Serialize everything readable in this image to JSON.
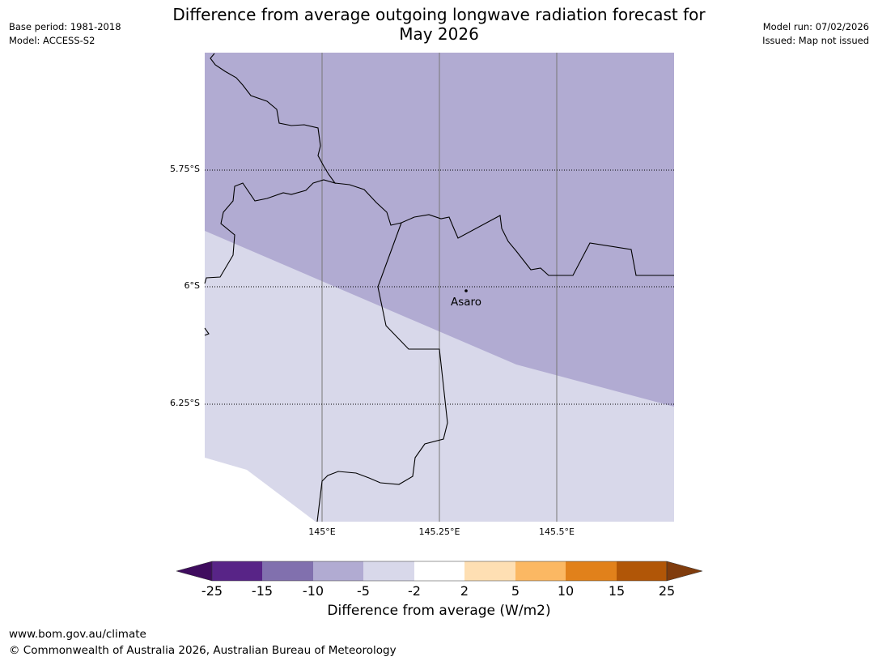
{
  "title_line1": "Difference from average outgoing longwave radiation forecast for",
  "title_line2": "May 2026",
  "meta_left": {
    "base_period": "Base period: 1981-2018",
    "model": "Model: ACCESS-S2"
  },
  "meta_right": {
    "model_run": "Model run: 07/02/2026",
    "issued": "Issued: Map not issued"
  },
  "map": {
    "lat_labels": [
      "5.75°S",
      "6°S",
      "6.25°S"
    ],
    "lon_labels": [
      "145°E",
      "145.25°E",
      "145.5°E"
    ],
    "place": {
      "name": "Asaro"
    },
    "colors": {
      "anomaly_minus10_minus5": "#b1abd2",
      "anomaly_minus5_minus2": "#d8d8ea"
    }
  },
  "colorbar": {
    "ticks": [
      "-25",
      "-15",
      "-10",
      "-5",
      "-2",
      "2",
      "5",
      "10",
      "15",
      "25"
    ],
    "colors": [
      "#3f0c5e",
      "#582487",
      "#8170ae",
      "#b1abd2",
      "#d8d8ea",
      "#ffffff",
      "#fedfb3",
      "#fbb863",
      "#e1811b",
      "#b15607",
      "#803c0d"
    ],
    "label": "Difference from average (W/m2)"
  },
  "footer": {
    "url": "www.bom.gov.au/climate",
    "copyright": "© Commonwealth of Australia 2026, Australian Bureau of Meteorology"
  }
}
